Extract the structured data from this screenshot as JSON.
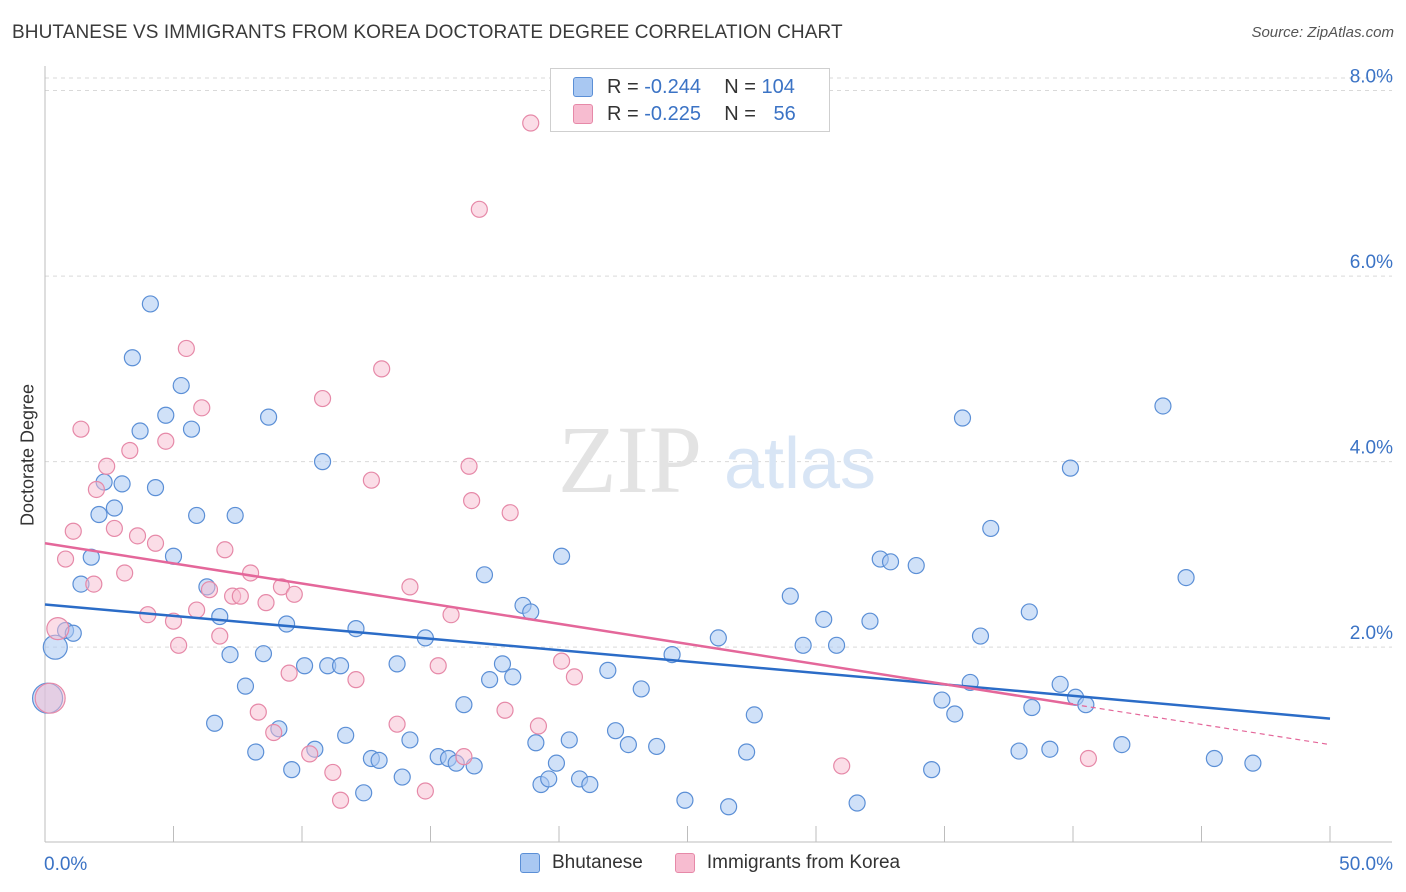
{
  "title": "BHUTANESE VS IMMIGRANTS FROM KOREA DOCTORATE DEGREE CORRELATION CHART",
  "source": "Source: ZipAtlas.com",
  "watermark": {
    "zip": "ZIP",
    "atlas": "atlas"
  },
  "legend": {
    "r_label": "R =",
    "n_label": "N =",
    "rows": [
      {
        "r": "-0.244",
        "n": "104"
      },
      {
        "r": "-0.225",
        "n": "56"
      }
    ]
  },
  "colors": {
    "blue_fill": "#a9c8f2",
    "blue_stroke": "#5b8fd6",
    "blue_line": "#2b6cc7",
    "pink_fill": "#f7bcd0",
    "pink_stroke": "#e689a8",
    "pink_line": "#e4679a",
    "tick_text": "#3b73c5",
    "grid": "#d9d9d9"
  },
  "chart_data": {
    "type": "scatter",
    "title": "BHUTANESE VS IMMIGRANTS FROM KOREA DOCTORATE DEGREE CORRELATION CHART",
    "xlabel": "",
    "ylabel": "Doctorate Degree",
    "xlim": [
      0,
      50
    ],
    "ylim": [
      -0.1,
      8.2
    ],
    "x_tick_labels": [
      "0.0%",
      "50.0%"
    ],
    "y_ticks": [
      2,
      4,
      6,
      8
    ],
    "y_tick_labels": [
      "2.0%",
      "4.0%",
      "6.0%",
      "8.0%"
    ],
    "grid": true,
    "legend_position": "bottom",
    "series": [
      {
        "name": "Bhutanese",
        "trend": {
          "x": [
            0,
            50
          ],
          "y": [
            2.46,
            1.23
          ]
        },
        "points": [
          [
            0.1,
            1.45
          ],
          [
            0.4,
            2.0
          ],
          [
            0.8,
            2.18
          ],
          [
            1.1,
            2.15
          ],
          [
            1.4,
            2.68
          ],
          [
            1.8,
            2.97
          ],
          [
            2.1,
            3.43
          ],
          [
            2.3,
            3.78
          ],
          [
            2.7,
            3.5
          ],
          [
            3.0,
            3.76
          ],
          [
            3.4,
            5.12
          ],
          [
            3.7,
            4.33
          ],
          [
            4.1,
            5.7
          ],
          [
            4.3,
            3.72
          ],
          [
            4.7,
            4.5
          ],
          [
            5.0,
            2.98
          ],
          [
            5.3,
            4.82
          ],
          [
            5.7,
            4.35
          ],
          [
            5.9,
            3.42
          ],
          [
            6.3,
            2.65
          ],
          [
            6.6,
            1.18
          ],
          [
            6.8,
            2.33
          ],
          [
            7.2,
            1.92
          ],
          [
            7.4,
            3.42
          ],
          [
            7.8,
            1.58
          ],
          [
            8.2,
            0.87
          ],
          [
            8.5,
            1.93
          ],
          [
            8.7,
            4.48
          ],
          [
            9.1,
            1.12
          ],
          [
            9.4,
            2.25
          ],
          [
            9.6,
            0.68
          ],
          [
            10.1,
            1.8
          ],
          [
            10.5,
            0.9
          ],
          [
            10.8,
            4.0
          ],
          [
            11.0,
            1.8
          ],
          [
            11.5,
            1.8
          ],
          [
            11.7,
            1.05
          ],
          [
            12.1,
            2.2
          ],
          [
            12.4,
            0.43
          ],
          [
            12.7,
            0.8
          ],
          [
            13.0,
            0.78
          ],
          [
            13.7,
            1.82
          ],
          [
            13.9,
            0.6
          ],
          [
            14.2,
            1.0
          ],
          [
            14.8,
            2.1
          ],
          [
            15.3,
            0.82
          ],
          [
            15.7,
            0.8
          ],
          [
            16.0,
            0.75
          ],
          [
            16.3,
            1.38
          ],
          [
            16.7,
            0.72
          ],
          [
            17.1,
            2.78
          ],
          [
            17.3,
            1.65
          ],
          [
            17.8,
            1.82
          ],
          [
            18.2,
            1.68
          ],
          [
            18.6,
            2.45
          ],
          [
            18.9,
            2.38
          ],
          [
            19.1,
            0.97
          ],
          [
            19.3,
            0.52
          ],
          [
            19.6,
            0.58
          ],
          [
            19.9,
            0.75
          ],
          [
            20.1,
            2.98
          ],
          [
            20.4,
            1.0
          ],
          [
            20.8,
            0.58
          ],
          [
            21.2,
            0.52
          ],
          [
            21.9,
            1.75
          ],
          [
            22.2,
            1.1
          ],
          [
            22.7,
            0.95
          ],
          [
            23.2,
            1.55
          ],
          [
            23.8,
            0.93
          ],
          [
            24.4,
            1.92
          ],
          [
            24.9,
            0.35
          ],
          [
            26.2,
            2.1
          ],
          [
            26.6,
            0.28
          ],
          [
            27.3,
            0.87
          ],
          [
            27.6,
            1.27
          ],
          [
            29.0,
            2.55
          ],
          [
            29.5,
            2.02
          ],
          [
            30.3,
            2.3
          ],
          [
            30.8,
            2.02
          ],
          [
            31.6,
            0.32
          ],
          [
            32.1,
            2.28
          ],
          [
            32.5,
            2.95
          ],
          [
            32.9,
            2.92
          ],
          [
            33.9,
            2.88
          ],
          [
            34.5,
            0.68
          ],
          [
            34.9,
            1.43
          ],
          [
            35.4,
            1.28
          ],
          [
            35.7,
            4.47
          ],
          [
            36.0,
            1.62
          ],
          [
            36.4,
            2.12
          ],
          [
            36.8,
            3.28
          ],
          [
            37.9,
            0.88
          ],
          [
            38.3,
            2.38
          ],
          [
            38.4,
            1.35
          ],
          [
            39.1,
            0.9
          ],
          [
            39.5,
            1.6
          ],
          [
            39.9,
            3.93
          ],
          [
            40.1,
            1.46
          ],
          [
            40.5,
            1.38
          ],
          [
            41.9,
            0.95
          ],
          [
            43.5,
            4.6
          ],
          [
            44.4,
            2.75
          ],
          [
            45.5,
            0.8
          ],
          [
            47.0,
            0.75
          ]
        ]
      },
      {
        "name": "Immigrants from Korea",
        "trend": {
          "x": [
            0,
            50
          ],
          "y": [
            3.12,
            0.95
          ]
        },
        "trend_solid_until": 40,
        "points": [
          [
            0.2,
            1.45
          ],
          [
            0.5,
            2.2
          ],
          [
            0.8,
            2.95
          ],
          [
            1.1,
            3.25
          ],
          [
            1.4,
            4.35
          ],
          [
            1.9,
            2.68
          ],
          [
            2.0,
            3.7
          ],
          [
            2.4,
            3.95
          ],
          [
            2.7,
            3.28
          ],
          [
            3.1,
            2.8
          ],
          [
            3.3,
            4.12
          ],
          [
            3.6,
            3.2
          ],
          [
            4.0,
            2.35
          ],
          [
            4.3,
            3.12
          ],
          [
            4.7,
            4.22
          ],
          [
            5.0,
            2.28
          ],
          [
            5.2,
            2.02
          ],
          [
            5.5,
            5.22
          ],
          [
            5.9,
            2.4
          ],
          [
            6.1,
            4.58
          ],
          [
            6.4,
            2.62
          ],
          [
            6.8,
            2.12
          ],
          [
            7.0,
            3.05
          ],
          [
            7.3,
            2.55
          ],
          [
            7.6,
            2.55
          ],
          [
            8.0,
            2.8
          ],
          [
            8.3,
            1.3
          ],
          [
            8.6,
            2.48
          ],
          [
            8.9,
            1.08
          ],
          [
            9.2,
            2.65
          ],
          [
            9.5,
            1.72
          ],
          [
            9.7,
            2.57
          ],
          [
            10.3,
            0.85
          ],
          [
            10.8,
            4.68
          ],
          [
            11.2,
            0.65
          ],
          [
            11.5,
            0.35
          ],
          [
            12.1,
            1.65
          ],
          [
            12.7,
            3.8
          ],
          [
            13.1,
            5.0
          ],
          [
            13.7,
            1.17
          ],
          [
            14.2,
            2.65
          ],
          [
            14.8,
            0.45
          ],
          [
            15.3,
            1.8
          ],
          [
            15.8,
            2.35
          ],
          [
            16.3,
            0.82
          ],
          [
            16.5,
            3.95
          ],
          [
            16.6,
            3.58
          ],
          [
            16.9,
            6.72
          ],
          [
            17.9,
            1.32
          ],
          [
            18.1,
            3.45
          ],
          [
            18.9,
            7.65
          ],
          [
            19.2,
            1.15
          ],
          [
            20.1,
            1.85
          ],
          [
            20.6,
            1.68
          ],
          [
            31.0,
            0.72
          ],
          [
            40.6,
            0.8
          ]
        ]
      }
    ]
  }
}
